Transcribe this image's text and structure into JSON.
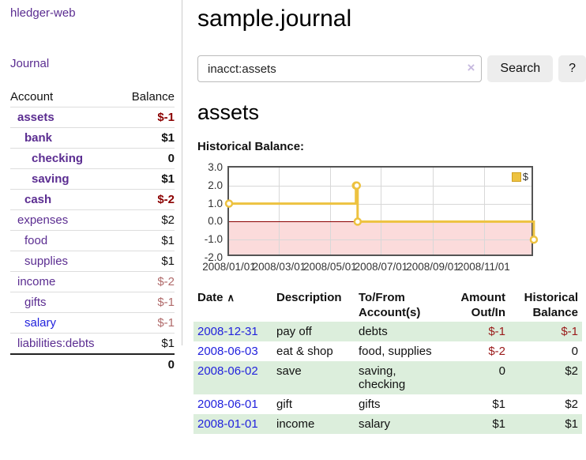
{
  "colors": {
    "link_purple": "#5b2d91",
    "link_blue": "#2222dd",
    "negative_strong": "#8b0000",
    "negative_soft": "#b06a6a",
    "negative_table": "#9a1a1a",
    "row_stripe_green": "#dceedc",
    "button_gray": "#ededed",
    "chart_line_gold": "#edc240",
    "chart_negative_fill": "#fbdbdb",
    "chart_zero_line": "#8b0000",
    "chart_grid": "#d8d8d8",
    "chart_border": "#545454"
  },
  "sidebar": {
    "brand": "hledger-web",
    "nav_journal": "Journal",
    "accounts": {
      "col_account": "Account",
      "col_balance": "Balance",
      "rows": [
        {
          "name": "assets",
          "level": 1,
          "bold": true,
          "balance": "$-1",
          "neg": "strong"
        },
        {
          "name": "bank",
          "level": 2,
          "bold": true,
          "balance": "$1"
        },
        {
          "name": "checking",
          "level": 3,
          "bold": true,
          "balance": "0"
        },
        {
          "name": "saving",
          "level": 3,
          "bold": true,
          "balance": "$1"
        },
        {
          "name": "cash",
          "level": 2,
          "bold": true,
          "balance": "$-2",
          "neg": "strong"
        },
        {
          "name": "expenses",
          "level": 1,
          "bold": false,
          "balance": "$2"
        },
        {
          "name": "food",
          "level": 2,
          "bold": false,
          "balance": "$1"
        },
        {
          "name": "supplies",
          "level": 2,
          "bold": false,
          "balance": "$1"
        },
        {
          "name": "income",
          "level": 1,
          "bold": false,
          "balance": "$-2",
          "neg": "soft"
        },
        {
          "name": "gifts",
          "level": 2,
          "bold": false,
          "balance": "$-1",
          "neg": "soft"
        },
        {
          "name": "salary",
          "level": 2,
          "bold": false,
          "balance": "$-1",
          "neg": "soft",
          "link": "blue"
        },
        {
          "name": "liabilities:debts",
          "level": 1,
          "bold": false,
          "balance": "$1"
        }
      ],
      "total": "0"
    }
  },
  "main": {
    "title": "sample.journal",
    "search": {
      "value": "inacct:assets",
      "clear_icon": "×",
      "search_label": "Search",
      "help_label": "?"
    },
    "account_heading": "assets",
    "register": {
      "headers": {
        "date": "Date",
        "sort_icon": "∧",
        "description": "Description",
        "accounts_l1": "To/From",
        "accounts_l2": "Account(s)",
        "amount_l1": "Amount",
        "amount_l2": "Out/In",
        "balance_l1": "Historical",
        "balance_l2": "Balance"
      },
      "rows": [
        {
          "date": "2008-12-31",
          "description": "pay off",
          "accounts": "debts",
          "amount": "$-1",
          "balance": "$-1",
          "amount_neg": true,
          "balance_neg": true,
          "stripe": true
        },
        {
          "date": "2008-06-03",
          "description": "eat & shop",
          "accounts": "food, supplies",
          "amount": "$-2",
          "balance": "0",
          "amount_neg": true,
          "balance_neg": false,
          "stripe": false
        },
        {
          "date": "2008-06-02",
          "description": "save",
          "accounts": "saving, checking",
          "amount": "0",
          "balance": "$2",
          "amount_neg": false,
          "balance_neg": false,
          "stripe": true
        },
        {
          "date": "2008-06-01",
          "description": "gift",
          "accounts": "gifts",
          "amount": "$1",
          "balance": "$2",
          "amount_neg": false,
          "balance_neg": false,
          "stripe": false
        },
        {
          "date": "2008-01-01",
          "description": "income",
          "accounts": "salary",
          "amount": "$1",
          "balance": "$1",
          "amount_neg": false,
          "balance_neg": false,
          "stripe": true
        }
      ]
    }
  },
  "chart_data": {
    "type": "line",
    "step": true,
    "title": "Historical Balance:",
    "series": [
      {
        "name": "$",
        "color": "#edc240",
        "points": [
          [
            "2008-01-01",
            1
          ],
          [
            "2008-06-01",
            2
          ],
          [
            "2008-06-02",
            2
          ],
          [
            "2008-06-03",
            0
          ],
          [
            "2008-12-31",
            -1
          ]
        ]
      }
    ],
    "x_range": [
      "2008-01-01",
      "2009-01-01"
    ],
    "ylim": [
      -2,
      3
    ],
    "grid": true,
    "legend_position": "top-right",
    "y_ticks": [
      {
        "label": "3.0",
        "value": 3
      },
      {
        "label": "2.0",
        "value": 2
      },
      {
        "label": "1.0",
        "value": 1
      },
      {
        "label": "0.0",
        "value": 0
      },
      {
        "label": "-1.0",
        "value": -1
      },
      {
        "label": "-2.0",
        "value": -2
      }
    ],
    "x_ticks": [
      {
        "label": "2008/01/01",
        "date": "2008-01-01"
      },
      {
        "label": "2008/03/01",
        "date": "2008-03-01"
      },
      {
        "label": "2008/05/01",
        "date": "2008-05-01"
      },
      {
        "label": "2008/07/01",
        "date": "2008-07-01"
      },
      {
        "label": "2008/09/01",
        "date": "2008-09-01"
      },
      {
        "label": "2008/11/01",
        "date": "2008-11-01"
      }
    ]
  }
}
